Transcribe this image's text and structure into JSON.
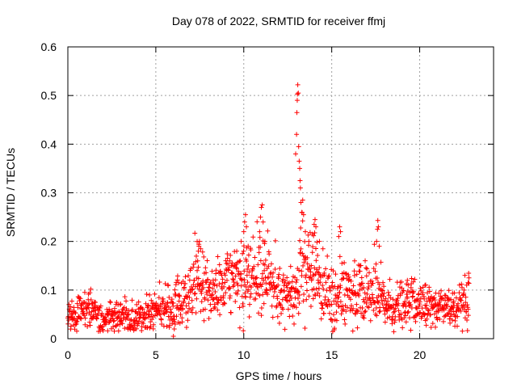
{
  "chart_data": {
    "type": "scatter",
    "title": "Day 078 of 2022, SRMTID for receiver ffmj",
    "xlabel": "GPS time / hours",
    "ylabel": "SRMTID / TECUs",
    "xlim": [
      0,
      24.2
    ],
    "ylim": [
      0,
      0.6
    ],
    "xticks": [
      0,
      5,
      10,
      15,
      20
    ],
    "xtick_labels": [
      "0",
      "5",
      "10",
      "15",
      "20"
    ],
    "yticks": [
      0,
      0.1,
      0.2,
      0.3,
      0.4,
      0.5,
      0.6
    ],
    "ytick_labels": [
      "0",
      "0.1",
      "0.2",
      "0.3",
      "0.4",
      "0.5",
      "0.6"
    ],
    "grid": true,
    "marker": "+",
    "series_color": "#ff0000",
    "series": [
      {
        "name": "SRMTID",
        "profile": [
          [
            0.0,
            0.045,
            0.018
          ],
          [
            0.5,
            0.05,
            0.02
          ],
          [
            0.9,
            0.065,
            0.025
          ],
          [
            1.3,
            0.055,
            0.02
          ],
          [
            2.0,
            0.04,
            0.018
          ],
          [
            2.5,
            0.045,
            0.018
          ],
          [
            3.0,
            0.04,
            0.018
          ],
          [
            3.5,
            0.038,
            0.016
          ],
          [
            4.0,
            0.045,
            0.018
          ],
          [
            4.5,
            0.055,
            0.02
          ],
          [
            5.0,
            0.06,
            0.02
          ],
          [
            5.5,
            0.07,
            0.022
          ],
          [
            5.9,
            0.06,
            0.03
          ],
          [
            6.3,
            0.07,
            0.03
          ],
          [
            6.8,
            0.08,
            0.03
          ],
          [
            7.3,
            0.12,
            0.045
          ],
          [
            7.8,
            0.1,
            0.035
          ],
          [
            8.5,
            0.095,
            0.03
          ],
          [
            9.0,
            0.11,
            0.035
          ],
          [
            9.5,
            0.12,
            0.04
          ],
          [
            10.0,
            0.12,
            0.05
          ],
          [
            10.5,
            0.11,
            0.04
          ],
          [
            11.0,
            0.13,
            0.05
          ],
          [
            11.5,
            0.12,
            0.04
          ],
          [
            12.0,
            0.1,
            0.035
          ],
          [
            12.5,
            0.09,
            0.03
          ],
          [
            13.0,
            0.1,
            0.04
          ],
          [
            13.2,
            0.15,
            0.06
          ],
          [
            13.5,
            0.13,
            0.05
          ],
          [
            14.0,
            0.14,
            0.05
          ],
          [
            14.5,
            0.1,
            0.04
          ],
          [
            15.0,
            0.09,
            0.035
          ],
          [
            15.5,
            0.1,
            0.04
          ],
          [
            16.0,
            0.09,
            0.035
          ],
          [
            16.5,
            0.09,
            0.035
          ],
          [
            17.0,
            0.085,
            0.035
          ],
          [
            17.5,
            0.09,
            0.04
          ],
          [
            18.0,
            0.07,
            0.03
          ],
          [
            18.5,
            0.065,
            0.025
          ],
          [
            19.0,
            0.07,
            0.028
          ],
          [
            19.5,
            0.075,
            0.028
          ],
          [
            20.0,
            0.07,
            0.025
          ],
          [
            20.5,
            0.065,
            0.025
          ],
          [
            21.0,
            0.065,
            0.025
          ],
          [
            21.5,
            0.065,
            0.025
          ],
          [
            22.0,
            0.06,
            0.022
          ],
          [
            22.5,
            0.065,
            0.025
          ],
          [
            22.8,
            0.07,
            0.03
          ]
        ],
        "peaks": [
          [
            7.35,
            0.14
          ],
          [
            7.38,
            0.16
          ],
          [
            7.42,
            0.18
          ],
          [
            7.45,
            0.19
          ],
          [
            7.48,
            0.2
          ],
          [
            7.55,
            0.185
          ],
          [
            9.2,
            0.16
          ],
          [
            9.6,
            0.18
          ],
          [
            9.85,
            0.2
          ],
          [
            10.0,
            0.22
          ],
          [
            10.05,
            0.24
          ],
          [
            10.1,
            0.255
          ],
          [
            10.15,
            0.23
          ],
          [
            10.25,
            0.19
          ],
          [
            10.9,
            0.22
          ],
          [
            10.95,
            0.25
          ],
          [
            11.0,
            0.27
          ],
          [
            11.05,
            0.275
          ],
          [
            11.1,
            0.24
          ],
          [
            11.2,
            0.2
          ],
          [
            12.95,
            0.38
          ],
          [
            13.0,
            0.42
          ],
          [
            13.02,
            0.465
          ],
          [
            13.04,
            0.49
          ],
          [
            13.05,
            0.503
          ],
          [
            13.07,
            0.522
          ],
          [
            13.1,
            0.505
          ],
          [
            13.12,
            0.395
          ],
          [
            13.15,
            0.365
          ],
          [
            13.18,
            0.35
          ],
          [
            13.2,
            0.325
          ],
          [
            13.22,
            0.31
          ],
          [
            13.25,
            0.28
          ],
          [
            13.3,
            0.26
          ],
          [
            13.35,
            0.285
          ],
          [
            13.4,
            0.255
          ],
          [
            13.5,
            0.22
          ],
          [
            13.7,
            0.2
          ],
          [
            13.9,
            0.215
          ],
          [
            14.0,
            0.235
          ],
          [
            14.05,
            0.245
          ],
          [
            14.1,
            0.23
          ],
          [
            14.3,
            0.2
          ],
          [
            14.5,
            0.185
          ],
          [
            15.4,
            0.21
          ],
          [
            15.45,
            0.23
          ],
          [
            15.5,
            0.22
          ],
          [
            17.55,
            0.2
          ],
          [
            17.6,
            0.225
          ],
          [
            17.62,
            0.243
          ],
          [
            17.65,
            0.23
          ],
          [
            17.7,
            0.19
          ],
          [
            16.3,
            0.16
          ],
          [
            16.6,
            0.15
          ],
          [
            19.3,
            0.12
          ],
          [
            20.3,
            0.11
          ],
          [
            22.8,
            0.125
          ],
          [
            22.75,
            0.115
          ],
          [
            6.3,
            0.115
          ],
          [
            6.0,
            0.005
          ],
          [
            6.05,
            0.02
          ],
          [
            6.1,
            0.03
          ]
        ],
        "n_points": 1400,
        "x_range": [
          0.0,
          22.8
        ]
      }
    ]
  }
}
